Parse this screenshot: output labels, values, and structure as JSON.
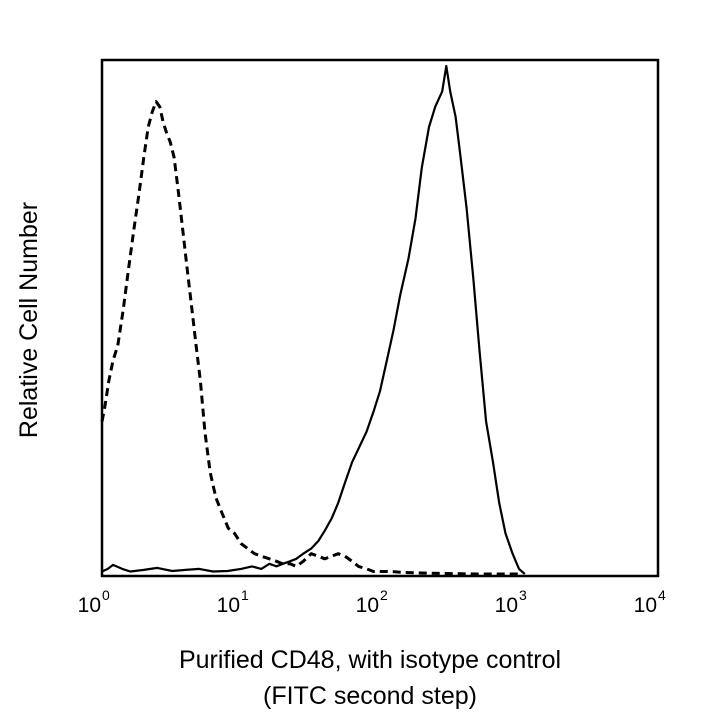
{
  "chart_data": {
    "type": "line",
    "title": "",
    "xlabel_line1": "Purified CD48, with isotype control",
    "xlabel_line2": "(FITC second step)",
    "ylabel": "Relative Cell Number",
    "x_scale": "log",
    "xlim": [
      1,
      10000
    ],
    "ylim": [
      0,
      100
    ],
    "grid": false,
    "legend": "none",
    "x_ticks": [
      {
        "base": "10",
        "exp": "0",
        "value": 1
      },
      {
        "base": "10",
        "exp": "1",
        "value": 10
      },
      {
        "base": "10",
        "exp": "2",
        "value": 100
      },
      {
        "base": "10",
        "exp": "3",
        "value": 1000
      },
      {
        "base": "10",
        "exp": "4",
        "value": 10000
      }
    ],
    "series": [
      {
        "style": "dashed",
        "color": "#000000",
        "x": [
          1.0,
          1.05,
          1.12,
          1.2,
          1.3,
          1.42,
          1.55,
          1.7,
          1.85,
          2.0,
          2.15,
          2.3,
          2.45,
          2.6,
          2.75,
          2.9,
          3.1,
          3.3,
          3.55,
          3.8,
          4.1,
          4.4,
          4.75,
          5.1,
          5.5,
          6.0,
          6.6,
          7.3,
          8.1,
          9.0,
          10.0,
          11.2,
          12.5,
          14.0,
          16.0,
          18.0,
          20.0,
          22.5,
          25.0,
          28.0,
          32.0,
          36.0,
          40.0,
          45.0,
          50.0,
          56.0,
          63.0,
          70.0,
          80.0,
          90.0,
          100.0,
          120.0,
          150.0,
          200.0,
          300.0,
          500.0,
          1000.0
        ],
        "y": [
          30,
          33,
          38,
          42,
          45,
          52,
          60,
          68,
          75,
          82,
          88,
          91,
          93,
          92,
          89,
          87,
          85,
          82,
          75,
          68,
          60,
          53,
          45,
          38,
          28,
          20,
          15,
          12,
          9,
          8,
          6,
          5,
          4,
          3.5,
          3,
          2.5,
          2,
          2,
          1.5,
          2.5,
          4,
          3.5,
          3,
          3.5,
          4,
          3.5,
          2.5,
          1.5,
          1,
          0.5,
          0.5,
          0.5,
          0.3,
          0.2,
          0.1,
          0,
          0
        ]
      },
      {
        "style": "solid",
        "color": "#000000",
        "x": [
          1.0,
          1.1,
          1.2,
          1.4,
          1.6,
          2.0,
          2.5,
          3.2,
          4.0,
          5.0,
          6.3,
          8.0,
          10.0,
          12.0,
          14.0,
          16.0,
          18.0,
          20.0,
          22.5,
          25.0,
          28.0,
          32.0,
          36.0,
          40.0,
          45.0,
          50.0,
          56.0,
          63.0,
          71.0,
          80.0,
          90.0,
          100.0,
          112.0,
          125.0,
          140.0,
          160.0,
          180.0,
          200.0,
          225.0,
          250.0,
          280.0,
          300.0,
          320.0,
          350.0,
          380.0,
          420.0,
          470.0,
          520.0,
          580.0,
          650.0,
          720.0,
          800.0,
          900.0,
          1000.0,
          1100.0
        ],
        "y": [
          0.5,
          1,
          1.8,
          1,
          0.5,
          0.8,
          1.2,
          0.6,
          0.8,
          1.0,
          0.5,
          0.6,
          1.0,
          1.5,
          1.0,
          2.0,
          1.5,
          2.0,
          2.5,
          3.0,
          4.0,
          5.0,
          6.5,
          8.5,
          11,
          14,
          18,
          22,
          25,
          28,
          32,
          36,
          42,
          48,
          55,
          62,
          70,
          80,
          88,
          92,
          95,
          100,
          95,
          90,
          82,
          72,
          58,
          44,
          30,
          22,
          14,
          8,
          4,
          1,
          0
        ]
      }
    ]
  }
}
